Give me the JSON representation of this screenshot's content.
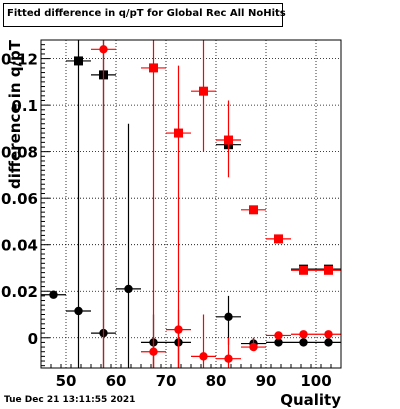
{
  "chart_data": {
    "type": "scatter",
    "title": "Fitted difference in q/pT  for Global Rec All NoHits",
    "xlabel": "Quality",
    "ylabel": "difference in q/pT",
    "xlim": [
      45,
      105
    ],
    "ylim": [
      -0.013,
      0.128
    ],
    "xticks": [
      50,
      60,
      70,
      80,
      90,
      100
    ],
    "yticks": [
      0,
      0.02,
      0.04,
      0.06,
      0.08,
      0.1,
      0.12
    ],
    "xtick_labels": [
      "50",
      "60",
      "70",
      "80",
      "90",
      "100"
    ],
    "ytick_labels": [
      "0",
      "0.02",
      "0.04",
      "0.06",
      "0.08",
      "0.1",
      "0.12"
    ],
    "grid": true,
    "x_halfwidth": 2.5,
    "series": [
      {
        "color": "#000000",
        "points": [
          {
            "x": 47.5,
            "y": 0.0185,
            "m": "circle",
            "ylo": 0.0185,
            "yhi": 0.0185
          },
          {
            "x": 52.5,
            "y": 0.0115,
            "m": "circle",
            "ylo": -0.013,
            "yhi": 0.128
          },
          {
            "x": 52.5,
            "y": 0.119,
            "m": "square",
            "ylo": 0.119,
            "yhi": 0.119
          },
          {
            "x": 57.5,
            "y": 0.002,
            "m": "circle",
            "ylo": -0.013,
            "yhi": 0.128
          },
          {
            "x": 57.5,
            "y": 0.113,
            "m": "square",
            "ylo": 0.113,
            "yhi": 0.113
          },
          {
            "x": 62.5,
            "y": 0.021,
            "m": "circle",
            "ylo": -0.013,
            "yhi": 0.092
          },
          {
            "x": 67.5,
            "y": -0.002,
            "m": "circle",
            "ylo": -0.013,
            "yhi": 0.01
          },
          {
            "x": 72.5,
            "y": -0.002,
            "m": "circle",
            "ylo": -0.013,
            "yhi": 0.012
          },
          {
            "x": 82.5,
            "y": 0.009,
            "m": "circle",
            "ylo": -0.003,
            "yhi": 0.018
          },
          {
            "x": 82.5,
            "y": 0.083,
            "m": "square",
            "ylo": 0.083,
            "yhi": 0.083
          },
          {
            "x": 87.5,
            "y": -0.0025,
            "m": "circle",
            "ylo": -0.005,
            "yhi": 0.0
          },
          {
            "x": 92.5,
            "y": -0.002,
            "m": "circle",
            "ylo": -0.002,
            "yhi": -0.002
          },
          {
            "x": 97.5,
            "y": -0.002,
            "m": "circle",
            "ylo": -0.002,
            "yhi": -0.002
          },
          {
            "x": 97.5,
            "y": 0.0295,
            "m": "square",
            "ylo": 0.0295,
            "yhi": 0.0295
          },
          {
            "x": 102.5,
            "y": -0.002,
            "m": "circle",
            "ylo": -0.002,
            "yhi": -0.002
          },
          {
            "x": 102.5,
            "y": 0.0295,
            "m": "square",
            "ylo": 0.0295,
            "yhi": 0.0295
          }
        ]
      },
      {
        "color": "#ff0000",
        "points": [
          {
            "x": 57.5,
            "y": 0.124,
            "m": "circle",
            "ylo": -0.013,
            "yhi": 0.128
          },
          {
            "x": 67.5,
            "y": 0.116,
            "m": "square",
            "ylo": -0.013,
            "yhi": 0.128
          },
          {
            "x": 67.5,
            "y": -0.006,
            "m": "circle",
            "ylo": -0.013,
            "yhi": 0.0
          },
          {
            "x": 72.5,
            "y": 0.088,
            "m": "square",
            "ylo": -0.013,
            "yhi": 0.117
          },
          {
            "x": 72.5,
            "y": 0.0035,
            "m": "circle",
            "ylo": -0.013,
            "yhi": 0.005
          },
          {
            "x": 77.5,
            "y": 0.106,
            "m": "square",
            "ylo": 0.08,
            "yhi": 0.128
          },
          {
            "x": 77.5,
            "y": -0.008,
            "m": "circle",
            "ylo": -0.013,
            "yhi": 0.01
          },
          {
            "x": 82.5,
            "y": 0.085,
            "m": "square",
            "ylo": 0.069,
            "yhi": 0.102
          },
          {
            "x": 82.5,
            "y": -0.009,
            "m": "circle",
            "ylo": -0.013,
            "yhi": 0.0
          },
          {
            "x": 87.5,
            "y": 0.055,
            "m": "square",
            "ylo": 0.055,
            "yhi": 0.055
          },
          {
            "x": 87.5,
            "y": -0.004,
            "m": "circle",
            "ylo": -0.005,
            "yhi": 0.0
          },
          {
            "x": 92.5,
            "y": 0.0425,
            "m": "square",
            "ylo": 0.0425,
            "yhi": 0.0425
          },
          {
            "x": 92.5,
            "y": 0.001,
            "m": "circle",
            "ylo": 0.001,
            "yhi": 0.001
          },
          {
            "x": 97.5,
            "y": 0.029,
            "m": "square",
            "ylo": 0.029,
            "yhi": 0.029
          },
          {
            "x": 97.5,
            "y": 0.0015,
            "m": "circle",
            "ylo": 0.0015,
            "yhi": 0.0015
          },
          {
            "x": 102.5,
            "y": 0.029,
            "m": "square",
            "ylo": 0.029,
            "yhi": 0.029
          },
          {
            "x": 102.5,
            "y": 0.0015,
            "m": "circle",
            "ylo": 0.0015,
            "yhi": 0.0015
          }
        ]
      }
    ]
  },
  "timestamp": "Tue Dec 21 13:11:55 2021"
}
